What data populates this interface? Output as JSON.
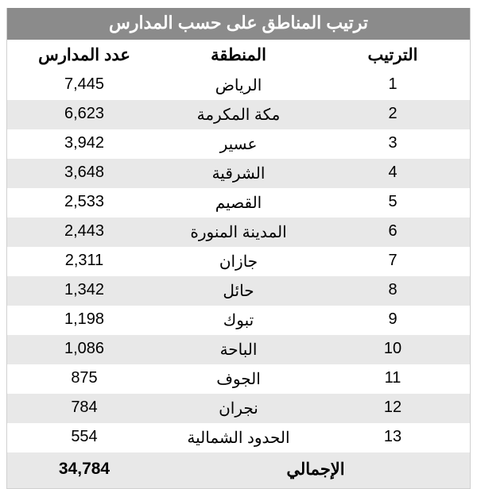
{
  "title": "ترتيب المناطق على حسب المدارس",
  "headers": {
    "rank": "الترتيب",
    "region": "المنطقة",
    "count": "عدد المدارس"
  },
  "rows": [
    {
      "rank": "1",
      "region": "الرياض",
      "count": "7,445"
    },
    {
      "rank": "2",
      "region": "مكة المكرمة",
      "count": "6,623"
    },
    {
      "rank": "3",
      "region": "عسير",
      "count": "3,942"
    },
    {
      "rank": "4",
      "region": "الشرقية",
      "count": "3,648"
    },
    {
      "rank": "5",
      "region": "القصيم",
      "count": "2,533"
    },
    {
      "rank": "6",
      "region": "المدينة المنورة",
      "count": "2,443"
    },
    {
      "rank": "7",
      "region": "جازان",
      "count": "2,311"
    },
    {
      "rank": "8",
      "region": "حائل",
      "count": "1,342"
    },
    {
      "rank": "9",
      "region": "تبوك",
      "count": "1,198"
    },
    {
      "rank": "10",
      "region": "الباحة",
      "count": "1,086"
    },
    {
      "rank": "11",
      "region": "الجوف",
      "count": "875"
    },
    {
      "rank": "12",
      "region": "نجران",
      "count": "784"
    },
    {
      "rank": "13",
      "region": "الحدود الشمالية",
      "count": "554"
    }
  ],
  "total": {
    "label": "الإجمالي",
    "value": "34,784"
  },
  "styling": {
    "title_bg": "#8b8b8b",
    "title_color": "#ffffff",
    "row_odd_bg": "#ffffff",
    "row_even_bg": "#e8e8e8",
    "border_color": "#d0d0d0",
    "text_color": "#000000",
    "title_fontsize": 22,
    "header_fontsize": 21,
    "cell_fontsize": 20
  }
}
